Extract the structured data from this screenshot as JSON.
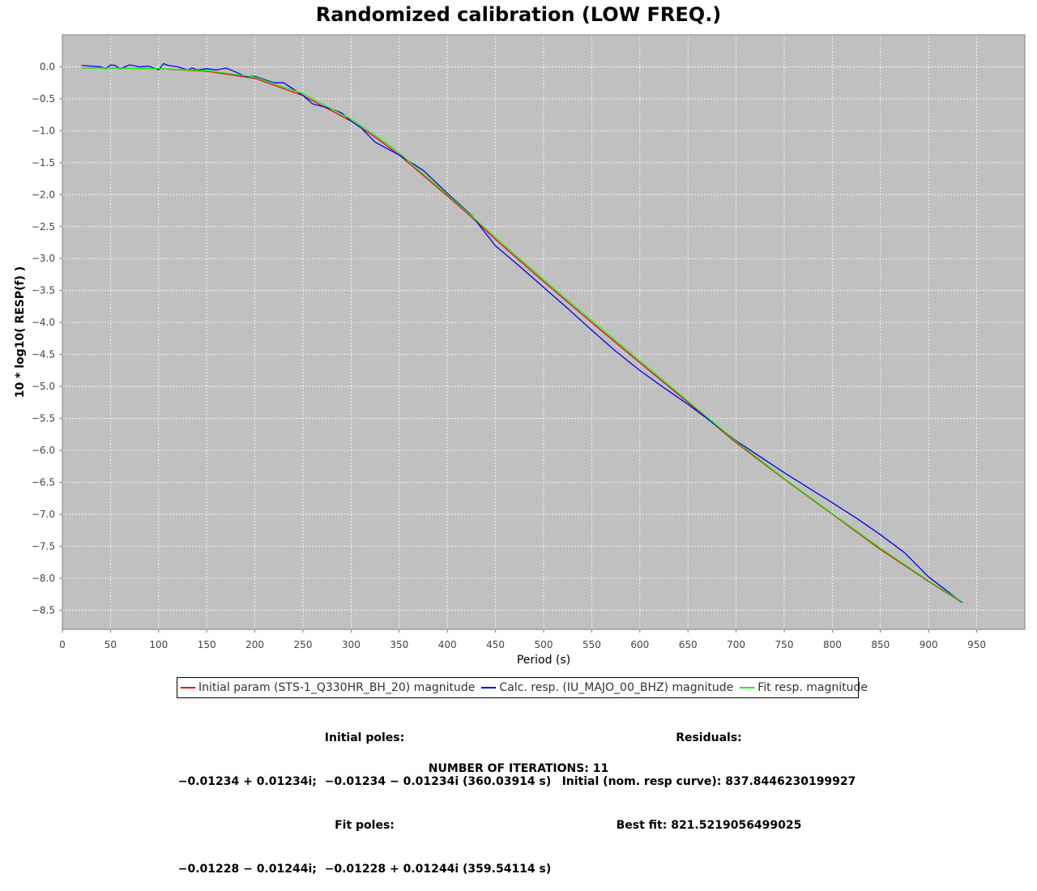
{
  "chart_data": {
    "type": "line",
    "title": "Randomized calibration (LOW FREQ.)",
    "xlabel": "Period (s)",
    "ylabel": "10 * log10( RESP(f) )",
    "xlim": [
      0,
      1000
    ],
    "ylim": [
      -8.8,
      0.5
    ],
    "x_ticks": [
      0,
      50,
      100,
      150,
      200,
      250,
      300,
      350,
      400,
      450,
      500,
      550,
      600,
      650,
      700,
      750,
      800,
      850,
      900,
      950
    ],
    "y_ticks": [
      0.0,
      -0.5,
      -1.0,
      -1.5,
      -2.0,
      -2.5,
      -3.0,
      -3.5,
      -4.0,
      -4.5,
      -5.0,
      -5.5,
      -6.0,
      -6.5,
      -7.0,
      -7.5,
      -8.0,
      -8.5
    ],
    "grid": true,
    "background": "#c0c0c0",
    "legend_position": "bottom",
    "series": [
      {
        "name": "Initial param (STS-1_Q330HR_BH_20) magnitude",
        "color": "#ff0000",
        "x": [
          20,
          50,
          100,
          150,
          200,
          250,
          300,
          325,
          350,
          375,
          400,
          425,
          450,
          500,
          550,
          600,
          650,
          700,
          750,
          800,
          850,
          900,
          935
        ],
        "y": [
          -0.02,
          -0.02,
          -0.03,
          -0.07,
          -0.18,
          -0.45,
          -0.85,
          -1.1,
          -1.38,
          -1.7,
          -2.02,
          -2.35,
          -2.7,
          -3.36,
          -4.0,
          -4.63,
          -5.25,
          -5.88,
          -6.45,
          -7.0,
          -7.55,
          -8.05,
          -8.38
        ]
      },
      {
        "name": "Calc. resp. (IU_MAJO_00_BHZ) magnitude",
        "color": "#0000ff",
        "x": [
          20,
          30,
          40,
          45,
          50,
          55,
          60,
          70,
          80,
          90,
          100,
          105,
          110,
          120,
          130,
          135,
          140,
          150,
          160,
          170,
          180,
          190,
          200,
          210,
          220,
          230,
          240,
          250,
          260,
          270,
          280,
          290,
          300,
          310,
          325,
          350,
          375,
          400,
          425,
          450,
          475,
          500,
          525,
          550,
          575,
          600,
          625,
          650,
          675,
          700,
          750,
          800,
          825,
          850,
          875,
          900,
          935
        ],
        "y": [
          0.02,
          0.01,
          0.0,
          -0.03,
          0.03,
          0.02,
          -0.03,
          0.03,
          0.0,
          0.01,
          -0.05,
          0.05,
          0.02,
          0.0,
          -0.05,
          -0.02,
          -0.05,
          -0.03,
          -0.05,
          -0.02,
          -0.08,
          -0.15,
          -0.15,
          -0.2,
          -0.25,
          -0.25,
          -0.35,
          -0.45,
          -0.58,
          -0.62,
          -0.66,
          -0.72,
          -0.85,
          -0.95,
          -1.18,
          -1.38,
          -1.62,
          -1.98,
          -2.32,
          -2.8,
          -3.12,
          -3.45,
          -3.78,
          -4.12,
          -4.45,
          -4.75,
          -5.02,
          -5.28,
          -5.56,
          -5.85,
          -6.35,
          -6.82,
          -7.06,
          -7.32,
          -7.6,
          -7.98,
          -8.38
        ]
      },
      {
        "name": "Fit resp. magnitude",
        "color": "#00ff00",
        "x": [
          20,
          50,
          100,
          150,
          200,
          250,
          300,
          325,
          350,
          375,
          400,
          425,
          450,
          500,
          550,
          600,
          650,
          700,
          750,
          800,
          850,
          900,
          935
        ],
        "y": [
          -0.02,
          -0.02,
          -0.03,
          -0.06,
          -0.16,
          -0.42,
          -0.82,
          -1.07,
          -1.35,
          -1.67,
          -2.0,
          -2.33,
          -2.67,
          -3.33,
          -3.97,
          -4.6,
          -5.23,
          -5.86,
          -6.44,
          -6.99,
          -7.53,
          -8.04,
          -8.37
        ]
      }
    ]
  },
  "info": {
    "initial_poles_label": "Initial poles:",
    "initial_poles_value": "−0.01234 + 0.01234i;  −0.01234 − 0.01234i (360.03914 s)",
    "fit_poles_label": "Fit poles:",
    "fit_poles_value": "−0.01228 − 0.01244i;  −0.01228 + 0.01244i (359.54114 s)",
    "residuals_label": "Residuals:",
    "residuals_initial": "Initial (nom. resp curve): 837.8446230199927",
    "residuals_best": "Best fit: 821.5219056499025",
    "iterations": "NUMBER OF ITERATIONS: 11"
  }
}
